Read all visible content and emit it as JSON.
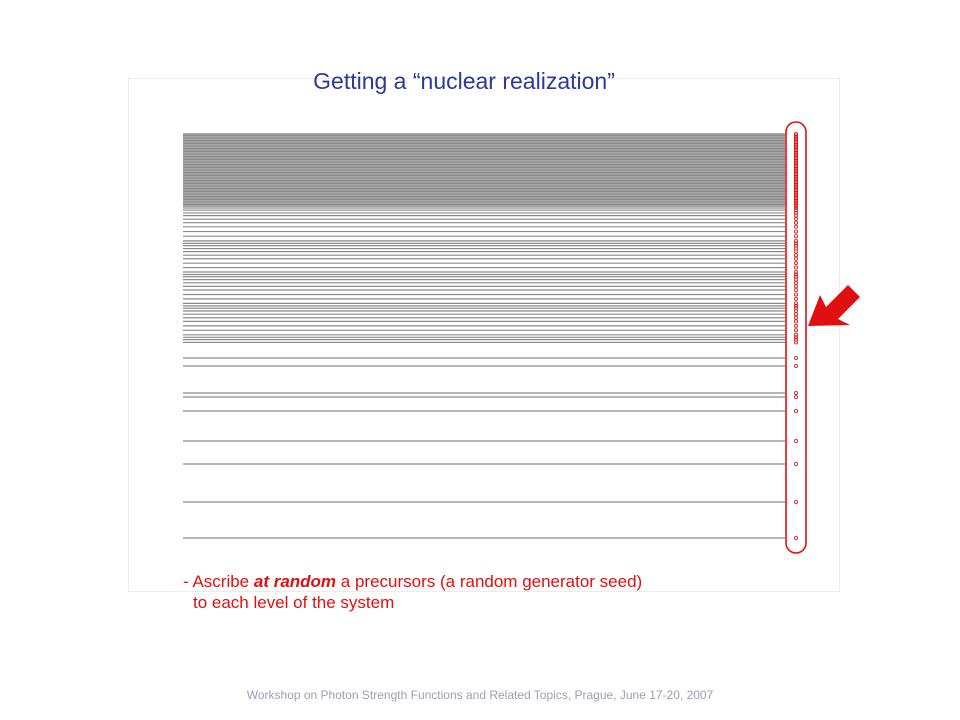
{
  "title": "Getting a “nuclear realization”",
  "bullet": {
    "dash": "- ",
    "prefix": "Ascribe ",
    "emphasis": "at random",
    "suffix": " a precursors (a random generator seed)",
    "line2": "to each level of the system"
  },
  "footer": "Workshop on Photon Strength Functions and Related Topics, Prague, June 17-20, 2007",
  "colors": {
    "title": "#2b3a9a",
    "text": "#e01010",
    "level_line": "#8a8a8a",
    "seed_marker": "#e01010",
    "arrow": "#e01010"
  },
  "icons": {
    "arrow": "arrow-pointing-left-down-icon",
    "seed": "seed-ring-icon"
  }
}
